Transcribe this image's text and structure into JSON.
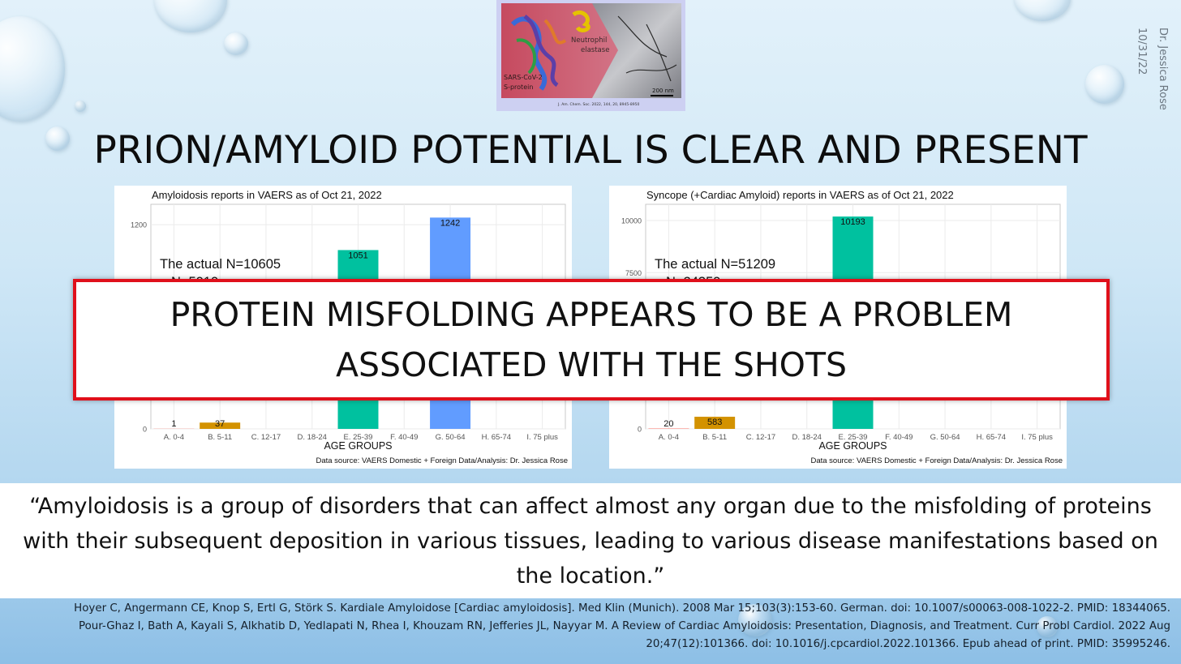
{
  "slide": {
    "title": "PRION/AMYLOID POTENTIAL IS CLEAR AND PRESENT",
    "author": "Dr. Jessica Rose",
    "date": "10/31/22"
  },
  "hero_image": {
    "label_left_1": "SARS-CoV-2",
    "label_left_2": "S-protein",
    "label_right_1": "Neutrophil",
    "label_right_2": "elastase",
    "scale": "200 nm",
    "citation": "J. Am. Chem. Soc. 2022, 144, 20, 8945-8950"
  },
  "overlay": {
    "line1": "PROTEIN MISFOLDING APPEARS TO BE A PROBLEM",
    "line2": "ASSOCIATED WITH THE SHOTS"
  },
  "quote": "“Amyloidosis is a group of disorders that can affect almost any organ due to the misfolding of proteins with their subsequent deposition in various tissues, leading to various disease manifestations based on the location.”",
  "references": [
    "Hoyer C, Angermann CE, Knop S, Ertl G, Störk S. Kardiale Amyloidose [Cardiac amyloidosis]. Med Klin (Munich). 2008 Mar 15;103(3):153-60. German. doi: 10.1007/s00063-008-1022-2. PMID: 18344065.",
    "Pour-Ghaz I, Bath A, Kayali S, Alkhatib D, Yedlapati N, Rhea I, Khouzam RN, Jefferies JL, Nayyar M. A Review of Cardiac Amyloidosis: Presentation, Diagnosis, and Treatment. Curr Probl Cardiol. 2022 Aug",
    "20;47(12):101366. doi: 10.1016/j.cpcardiol.2022.101366. Epub ahead of print. PMID: 35995246."
  ],
  "colors": {
    "overlay_border": "#e0101b",
    "bar_palette": [
      "#f8766d",
      "#d39200",
      "#93aa00",
      "#00ba38",
      "#00c19f",
      "#00b9e3",
      "#619cff",
      "#db72fb",
      "#ff61c3"
    ]
  },
  "chart_data": [
    {
      "type": "bar",
      "title": "Amyloidosis reports in VAERS as of Oct 21, 2022",
      "xlabel": "AGE GROUPS",
      "ylabel": "",
      "categories": [
        "A. 0-4",
        "B. 5-11",
        "C. 12-17",
        "D. 18-24",
        "E. 25-39",
        "F. 40-49",
        "G. 50-64",
        "H. 65-74",
        "I. 75 plus"
      ],
      "values": [
        1,
        37,
        null,
        null,
        1051,
        null,
        1242,
        null,
        null
      ],
      "value_labels": [
        "1",
        "37",
        "",
        "",
        "1051",
        "",
        "1242",
        "",
        ""
      ],
      "yticks": [
        0,
        1200
      ],
      "ylim": [
        0,
        1320
      ],
      "grid": true,
      "annotation": "The actual N=10605",
      "annotation_partial": "N=5919",
      "source": "Data source: VAERS Domestic + Foreign Data/Analysis: Dr. Jessica Rose"
    },
    {
      "type": "bar",
      "title": "Syncope (+Cardiac Amyloid) reports in VAERS as of Oct 21, 2022",
      "xlabel": "AGE GROUPS",
      "ylabel": "",
      "categories": [
        "A. 0-4",
        "B. 5-11",
        "C. 12-17",
        "D. 18-24",
        "E. 25-39",
        "F. 40-49",
        "G. 50-64",
        "H. 65-74",
        "I. 75 plus"
      ],
      "values": [
        20,
        583,
        null,
        null,
        10193,
        null,
        null,
        null,
        null
      ],
      "value_labels": [
        "20",
        "583",
        "",
        "",
        "10193",
        "",
        "",
        "",
        ""
      ],
      "yticks": [
        0,
        7500,
        10000
      ],
      "ylim": [
        0,
        10780
      ],
      "grid": true,
      "annotation": "The actual N=51209",
      "annotation_partial": "N=24359",
      "source": "Data source: VAERS Domestic + Foreign Data/Analysis: Dr. Jessica Rose"
    }
  ]
}
